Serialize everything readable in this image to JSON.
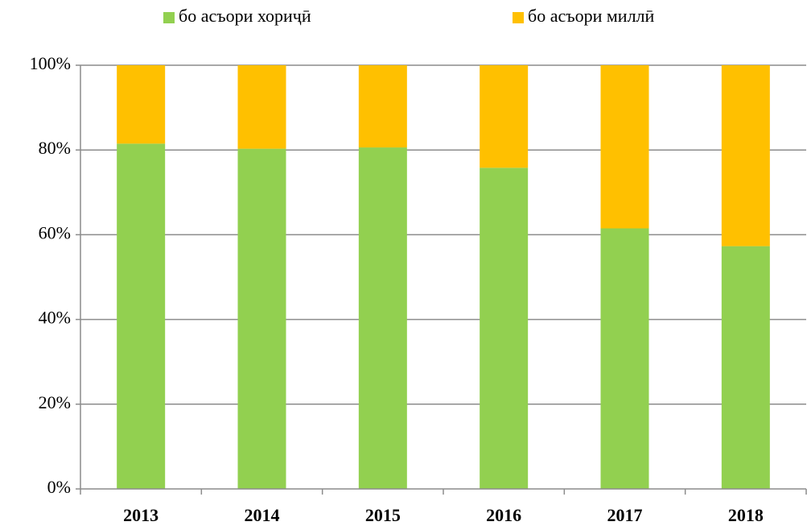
{
  "chart_data": {
    "type": "stacked_bar_percent",
    "categories": [
      "2013",
      "2014",
      "2015",
      "2016",
      "2017",
      "2018"
    ],
    "series": [
      {
        "name": "бо асъори хориҷӣ",
        "color": "#92d050",
        "values": [
          81.5,
          80.3,
          80.6,
          75.8,
          61.5,
          57.3
        ]
      },
      {
        "name": "бо асъори миллӣ",
        "color": "#ffc000",
        "values": [
          18.5,
          19.7,
          19.4,
          24.2,
          38.5,
          42.7
        ]
      }
    ],
    "ylim": [
      0,
      100
    ],
    "yticks": [
      {
        "value": 0,
        "label": "0%"
      },
      {
        "value": 20,
        "label": "20%"
      },
      {
        "value": 40,
        "label": "40%"
      },
      {
        "value": 60,
        "label": "60%"
      },
      {
        "value": 80,
        "label": "80%"
      },
      {
        "value": 100,
        "label": "100%"
      }
    ],
    "grid": true,
    "legend": "top"
  }
}
